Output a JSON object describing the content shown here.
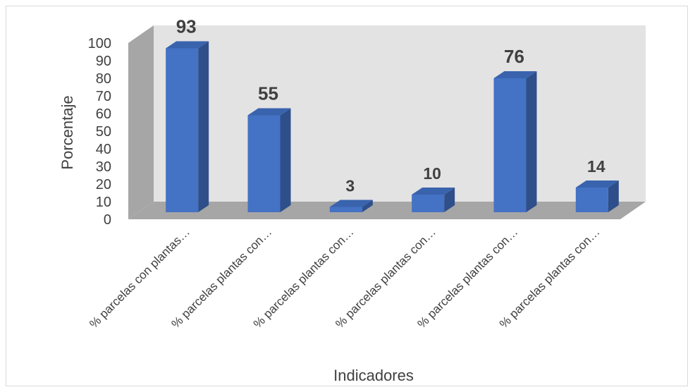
{
  "chart_data": {
    "type": "bar",
    "style": "3d-clustered-column",
    "categories": [
      "% parcelas con plantas…",
      "% parcelas plantas con…",
      "% parcelas plantas con…",
      "% parcelas plantas con…",
      "% parcelas plantas con…",
      "% parcelas plantas con…"
    ],
    "values": [
      93,
      55,
      3,
      10,
      76,
      14
    ],
    "data_labels": [
      "93",
      "55",
      "3",
      "10",
      "76",
      "14"
    ],
    "title": "",
    "xlabel": "Indicadores",
    "ylabel": "Porcentaje",
    "ylim": [
      0,
      100
    ],
    "yticks": [
      0,
      10,
      20,
      30,
      40,
      50,
      60,
      70,
      80,
      90,
      100
    ],
    "grid": false,
    "legend": "none",
    "colors": {
      "bar_front": "#4472c4",
      "bar_side": "#2f4f8a",
      "bar_top": "#3a63ad",
      "back_wall": "#e3e3e3",
      "side_wall": "#a6a6a6",
      "floor": "#a6a6a6",
      "text": "#404040"
    }
  }
}
